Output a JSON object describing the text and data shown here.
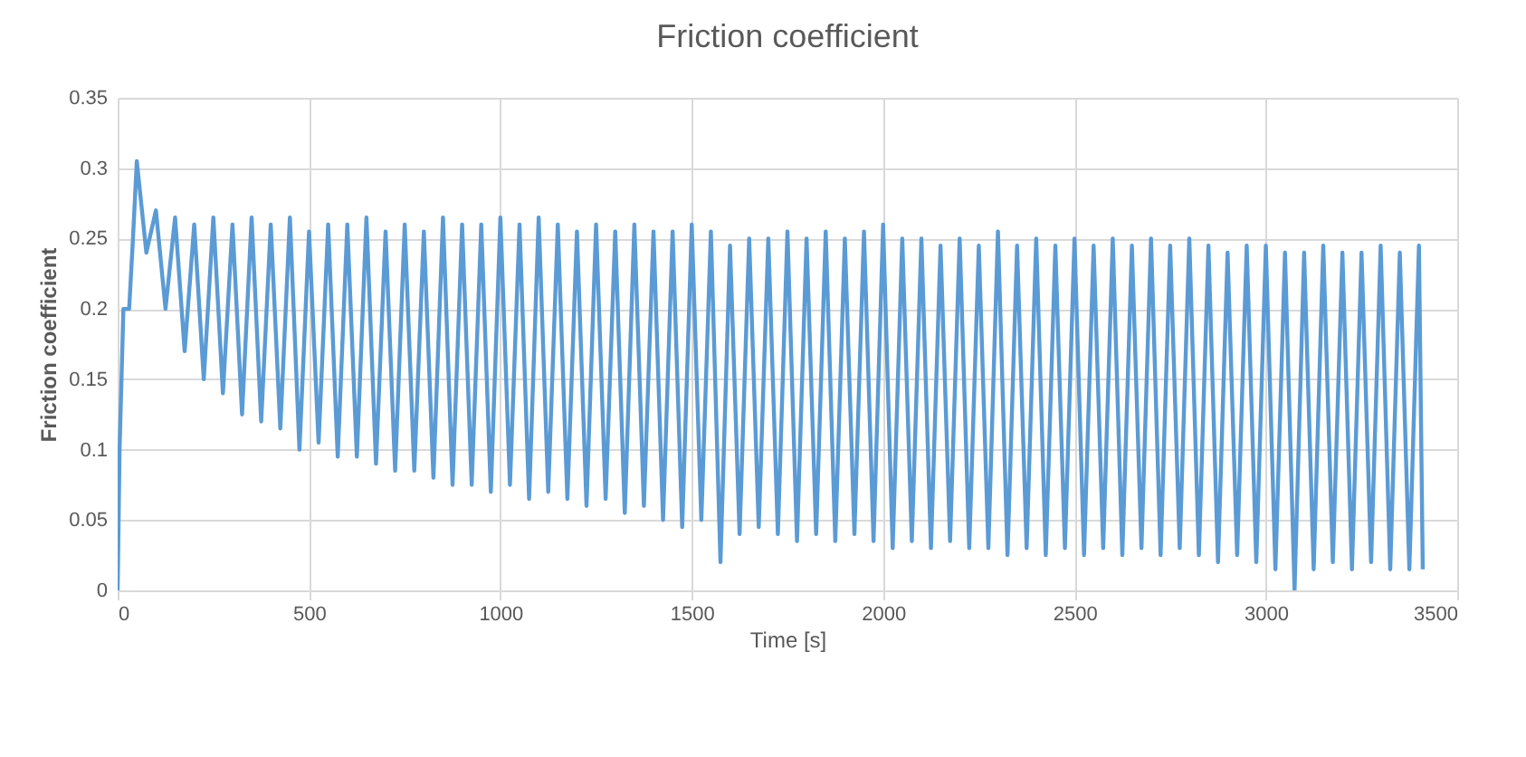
{
  "chart_data": {
    "type": "line",
    "title": "Friction coefficient",
    "xlabel": "Time [s]",
    "ylabel": "Friction coefficient",
    "xlim": [
      0,
      3500
    ],
    "xticks": [
      0,
      500,
      1000,
      1500,
      2000,
      2500,
      3000,
      3500
    ],
    "ylim": [
      0,
      0.35
    ],
    "yticks": [
      0,
      0.05,
      0.1,
      0.15,
      0.2,
      0.25,
      0.3,
      0.35
    ],
    "grid": true,
    "series": [
      {
        "color": "#5b9bd5",
        "x": [
          0,
          5,
          15,
          30,
          40,
          50,
          75,
          100,
          125,
          150,
          175,
          200,
          225,
          250,
          275,
          300,
          325,
          350,
          375,
          400,
          425,
          450,
          475,
          500,
          525,
          550,
          575,
          600,
          625,
          650,
          675,
          700,
          725,
          750,
          775,
          800,
          825,
          850,
          875,
          900,
          925,
          950,
          975,
          1000,
          1025,
          1050,
          1075,
          1100,
          1125,
          1150,
          1175,
          1200,
          1225,
          1250,
          1275,
          1300,
          1325,
          1350,
          1375,
          1400,
          1425,
          1450,
          1475,
          1500,
          1525,
          1550,
          1575,
          1600,
          1625,
          1650,
          1675,
          1700,
          1725,
          1750,
          1775,
          1800,
          1825,
          1850,
          1875,
          1900,
          1925,
          1950,
          1975,
          2000,
          2025,
          2050,
          2075,
          2100,
          2125,
          2150,
          2175,
          2200,
          2225,
          2250,
          2275,
          2300,
          2325,
          2350,
          2375,
          2400,
          2425,
          2450,
          2475,
          2500,
          2525,
          2550,
          2575,
          2600,
          2625,
          2650,
          2675,
          2700,
          2725,
          2750,
          2775,
          2800,
          2825,
          2850,
          2875,
          2900,
          2925,
          2950,
          2975,
          3000,
          3025,
          3050,
          3075,
          3100,
          3125,
          3150,
          3175,
          3200,
          3225,
          3250,
          3275,
          3300,
          3325,
          3350,
          3375,
          3400,
          3410
        ],
        "values": [
          0,
          0.1,
          0.2,
          0.2,
          0.25,
          0.305,
          0.24,
          0.27,
          0.2,
          0.265,
          0.17,
          0.26,
          0.15,
          0.265,
          0.14,
          0.26,
          0.125,
          0.265,
          0.12,
          0.26,
          0.115,
          0.265,
          0.1,
          0.255,
          0.105,
          0.26,
          0.095,
          0.26,
          0.095,
          0.265,
          0.09,
          0.255,
          0.085,
          0.26,
          0.085,
          0.255,
          0.08,
          0.265,
          0.075,
          0.26,
          0.075,
          0.26,
          0.07,
          0.265,
          0.075,
          0.26,
          0.065,
          0.265,
          0.07,
          0.26,
          0.065,
          0.255,
          0.06,
          0.26,
          0.065,
          0.255,
          0.055,
          0.26,
          0.06,
          0.255,
          0.05,
          0.255,
          0.045,
          0.26,
          0.05,
          0.255,
          0.02,
          0.245,
          0.04,
          0.25,
          0.045,
          0.25,
          0.04,
          0.255,
          0.035,
          0.25,
          0.04,
          0.255,
          0.035,
          0.25,
          0.04,
          0.255,
          0.035,
          0.26,
          0.03,
          0.25,
          0.035,
          0.25,
          0.03,
          0.245,
          0.035,
          0.25,
          0.03,
          0.245,
          0.03,
          0.255,
          0.025,
          0.245,
          0.03,
          0.25,
          0.025,
          0.245,
          0.03,
          0.25,
          0.025,
          0.245,
          0.03,
          0.25,
          0.025,
          0.245,
          0.03,
          0.25,
          0.025,
          0.245,
          0.03,
          0.25,
          0.025,
          0.245,
          0.02,
          0.24,
          0.025,
          0.245,
          0.02,
          0.245,
          0.015,
          0.24,
          0,
          0.24,
          0.015,
          0.245,
          0.02,
          0.24,
          0.015,
          0.24,
          0.02,
          0.245,
          0.015,
          0.24,
          0.015,
          0.245,
          0.015
        ]
      }
    ]
  }
}
